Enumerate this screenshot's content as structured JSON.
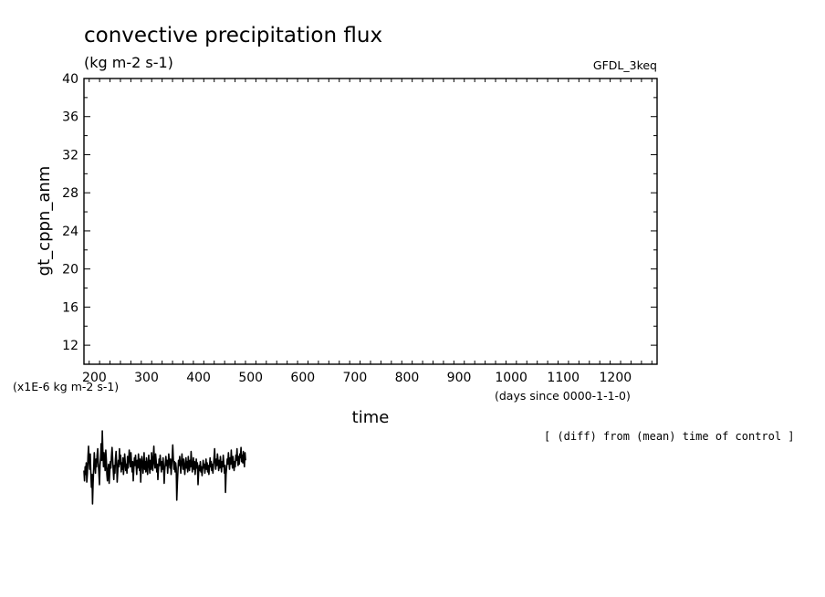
{
  "chart_data": {
    "type": "line",
    "title": "convective precipitation flux",
    "units": "(kg m-2 s-1)",
    "model": "GFDL_3keq",
    "ylabel": "gt_cppn_anm",
    "xlabel": "time",
    "y_scale_note": "(x1E-6 kg m-2 s-1)",
    "x_units_note": "(days since 0000-1-1-0)",
    "difference_note": "[ (diff) from (mean) time of control ]",
    "xlim": [
      180,
      1280
    ],
    "ylim": [
      10,
      40
    ],
    "x_ticks": [
      200,
      300,
      400,
      500,
      600,
      700,
      800,
      900,
      1000,
      1100,
      1200
    ],
    "y_ticks": [
      12,
      16,
      20,
      24,
      28,
      32,
      36,
      40
    ],
    "grid": false,
    "series": [
      {
        "color": "#000000",
        "x_start": 180,
        "x_step": 1.1,
        "values": [
          0.5,
          -0.3,
          0.8,
          0.2,
          1.1,
          -0.4,
          0.3,
          1.6,
          2.4,
          1.2,
          0.6,
          1.8,
          0.4,
          -0.8,
          0.2,
          -2.1,
          -0.5,
          0.7,
          1.9,
          1.0,
          0.3,
          1.4,
          0.8,
          1.7,
          2.2,
          1.1,
          0.4,
          -0.6,
          0.9,
          1.5,
          2.6,
          1.3,
          3.6,
          2.0,
          0.8,
          1.9,
          1.2,
          0.5,
          2.1,
          1.4,
          0.2,
          -0.3,
          0.6,
          1.0,
          -0.5,
          0.4,
          1.2,
          0.7,
          1.6,
          2.3,
          1.5,
          0.6,
          -0.2,
          0.9,
          0.3,
          1.4,
          2.0,
          1.1,
          -0.4,
          0.5,
          1.3,
          0.8,
          2.2,
          1.0,
          1.7,
          0.4,
          1.1,
          0.6,
          1.5,
          0.2,
          0.9,
          1.8,
          1.2,
          0.5,
          1.0,
          0.3,
          1.6,
          0.7,
          1.3,
          2.1,
          1.4,
          0.8,
          1.9,
          1.1,
          0.4,
          1.2,
          -0.3,
          0.6,
          1.5,
          0.9,
          1.7,
          1.0,
          0.2,
          1.3,
          0.7,
          1.8,
          1.2,
          0.5,
          1.4,
          -0.4,
          0.8,
          1.6,
          1.1,
          0.3,
          1.0,
          1.9,
          0.6,
          1.2,
          0.4,
          1.5,
          0.9,
          0.2,
          1.1,
          1.7,
          0.8,
          0.3,
          1.3,
          0.6,
          1.9,
          1.2,
          0.5,
          1.6,
          2.4,
          1.1,
          0.7,
          1.8,
          1.3,
          0.4,
          1.0,
          -0.2,
          0.6,
          1.4,
          0.9,
          1.7,
          1.0,
          0.4,
          1.2,
          0.6,
          1.5,
          0.8,
          -0.5,
          0.5,
          1.1,
          1.6,
          0.9,
          1.3,
          0.3,
          1.0,
          1.8,
          1.2,
          0.7,
          1.4,
          0.2,
          0.9,
          1.6,
          2.5,
          1.3,
          0.6,
          1.2,
          0.4,
          1.1,
          0.7,
          -1.8,
          -0.4,
          0.5,
          1.3,
          0.9,
          1.6,
          1.0,
          0.3,
          1.2,
          1.8,
          1.1,
          0.6,
          1.4,
          0.8,
          0.2,
          1.0,
          1.5,
          0.7,
          1.2,
          0.4,
          1.6,
          1.0,
          0.5,
          1.3,
          0.8,
          2.0,
          1.1,
          0.4,
          0.9,
          1.5,
          0.6,
          1.2,
          0.2,
          0.8,
          1.4,
          0.7,
          1.1,
          -0.6,
          0.3,
          0.9,
          0.5,
          1.2,
          0.4,
          0.8,
          0.1,
          0.6,
          1.3,
          0.7,
          1.0,
          0.3,
          0.8,
          1.4,
          0.6,
          1.1,
          0.4,
          0.9,
          0.2,
          0.7,
          1.5,
          0.8,
          1.2,
          0.5,
          1.0,
          0.3,
          0.9,
          1.6,
          2.2,
          1.1,
          0.6,
          1.4,
          0.9,
          1.8,
          1.2,
          0.5,
          1.3,
          0.7,
          1.6,
          1.0,
          0.4,
          1.2,
          0.8,
          1.7,
          1.1,
          0.3,
          0.9,
          -1.2,
          0.2,
          0.8,
          1.4,
          1.0,
          1.9,
          1.2,
          0.6,
          1.5,
          1.0,
          2.1,
          1.3,
          0.7,
          1.6,
          1.1,
          0.5,
          1.2,
          0.8,
          1.7,
          1.3,
          2.2,
          1.4,
          0.9,
          1.6,
          1.0,
          1.8,
          1.5,
          2.3,
          1.2,
          1.7,
          1.1,
          2.0,
          1.4,
          0.8,
          1.9,
          1.3
        ]
      }
    ]
  }
}
